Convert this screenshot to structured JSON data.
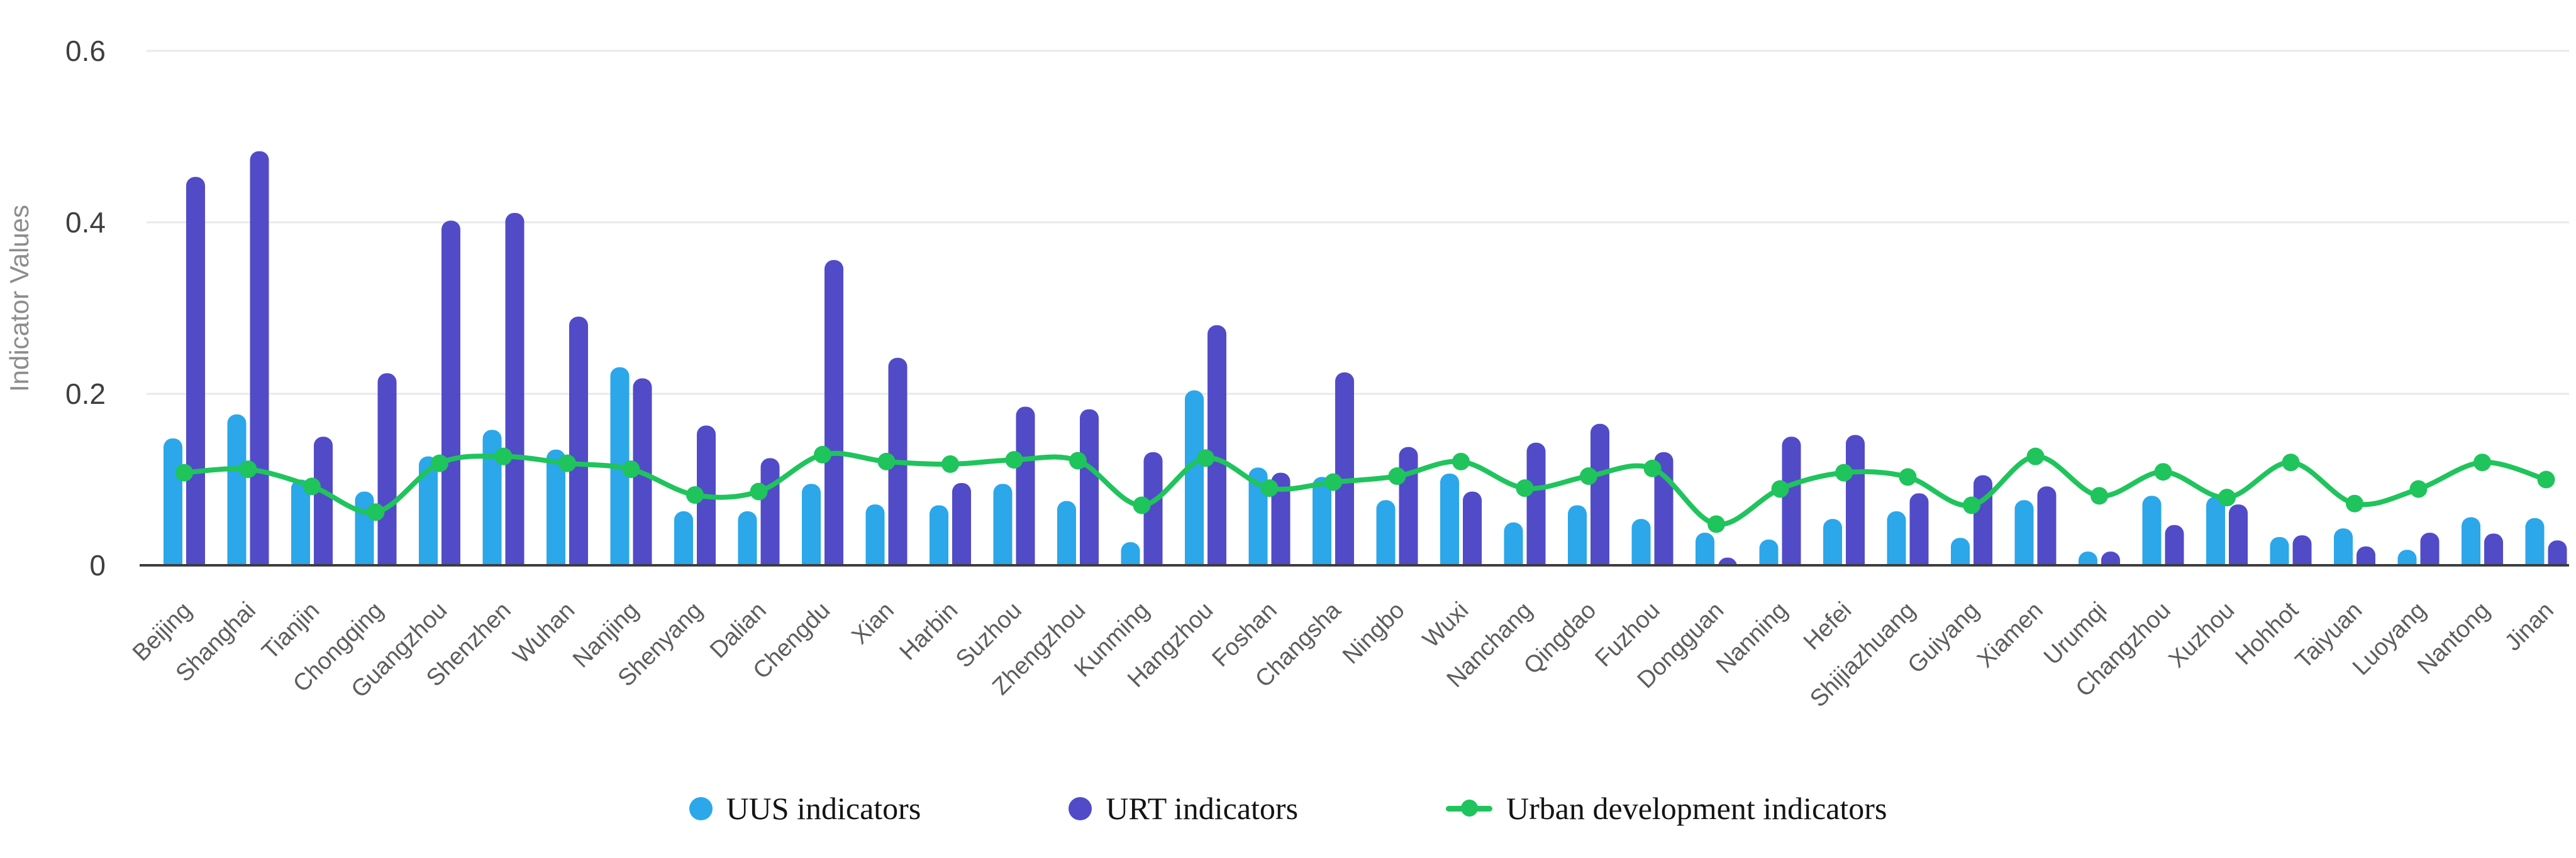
{
  "y_axis": {
    "title": "Indicator Values",
    "tick_labels": [
      "0",
      "0.2",
      "0.4",
      "0.6"
    ]
  },
  "legend": {
    "items": [
      {
        "label": "UUS indicators",
        "color": "#2BA7EA",
        "marker": "circle"
      },
      {
        "label": "URT indicators",
        "color": "#514BC8",
        "marker": "circle"
      },
      {
        "label": "Urban development indicators",
        "color": "#1FC45C",
        "marker": "line-dot"
      }
    ]
  },
  "chart_data": {
    "type": "bar",
    "title": "",
    "xlabel": "",
    "ylabel": "Indicator Values",
    "yticks": [
      0,
      0.2,
      0.4,
      0.6
    ],
    "ylim": [
      0,
      0.64
    ],
    "grid": true,
    "legend_position": "bottom",
    "categories": [
      "Beijing",
      "Shanghai",
      "Tianjin",
      "Chongqing",
      "Guangzhou",
      "Shenzhen",
      "Wuhan",
      "Nanjing",
      "Shenyang",
      "Dalian",
      "Chengdu",
      "Xian",
      "Harbin",
      "Suzhou",
      "Zhengzhou",
      "Kunming",
      "Hangzhou",
      "Foshan",
      "Changsha",
      "Ningbo",
      "Wuxi",
      "Nanchang",
      "Qingdao",
      "Fuzhou",
      "Dongguan",
      "Nanning",
      "Hefei",
      "Shijiazhuang",
      "Guiyang",
      "Xiamen",
      "Urumqi",
      "Changzhou",
      "Xuzhou",
      "Hohhot",
      "Taiyuan",
      "Luoyang",
      "Nantong",
      "Jinan"
    ],
    "series": [
      {
        "name": "UUS indicators",
        "type": "bar",
        "color": "#2BA7EA",
        "values": [
          0.148,
          0.176,
          0.1,
          0.086,
          0.127,
          0.158,
          0.135,
          0.231,
          0.063,
          0.063,
          0.095,
          0.071,
          0.07,
          0.095,
          0.075,
          0.027,
          0.204,
          0.114,
          0.103,
          0.076,
          0.107,
          0.05,
          0.07,
          0.054,
          0.038,
          0.03,
          0.054,
          0.063,
          0.032,
          0.076,
          0.016,
          0.081,
          0.08,
          0.033,
          0.043,
          0.018,
          0.056,
          0.055
        ]
      },
      {
        "name": "URT indicators",
        "type": "bar",
        "color": "#514BC8",
        "values": [
          0.453,
          0.483,
          0.15,
          0.224,
          0.402,
          0.411,
          0.29,
          0.218,
          0.163,
          0.125,
          0.356,
          0.242,
          0.096,
          0.185,
          0.182,
          0.132,
          0.28,
          0.108,
          0.225,
          0.138,
          0.086,
          0.143,
          0.165,
          0.132,
          0.009,
          0.15,
          0.152,
          0.084,
          0.105,
          0.092,
          0.016,
          0.047,
          0.071,
          0.035,
          0.022,
          0.038,
          0.037,
          0.029
        ]
      },
      {
        "name": "Urban development indicators",
        "type": "line",
        "color": "#1FC45C",
        "values": [
          0.108,
          0.112,
          0.092,
          0.062,
          0.119,
          0.127,
          0.119,
          0.112,
          0.082,
          0.086,
          0.129,
          0.121,
          0.118,
          0.123,
          0.122,
          0.07,
          0.125,
          0.09,
          0.097,
          0.104,
          0.121,
          0.09,
          0.104,
          0.113,
          0.048,
          0.089,
          0.108,
          0.103,
          0.07,
          0.127,
          0.081,
          0.109,
          0.079,
          0.12,
          0.072,
          0.089,
          0.12,
          0.1
        ]
      }
    ]
  }
}
